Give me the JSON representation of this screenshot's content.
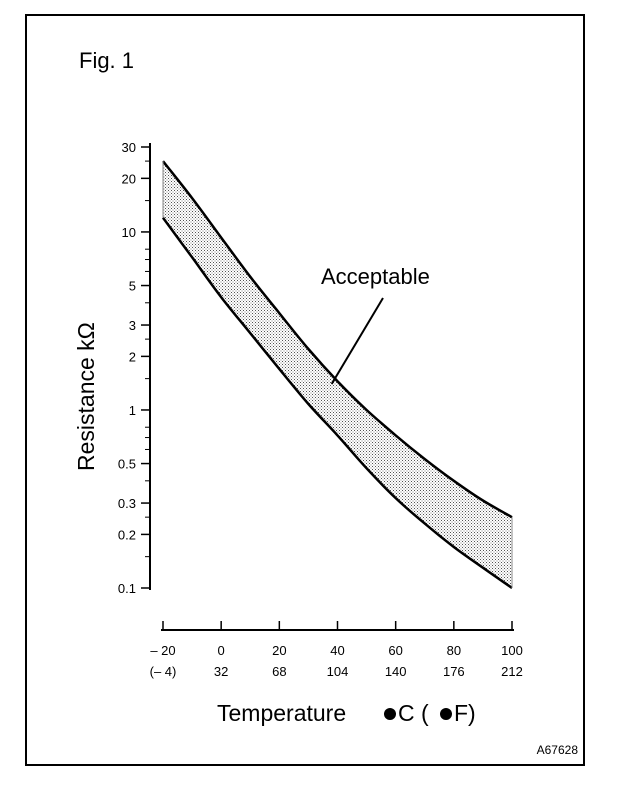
{
  "figure_label": "Fig. 1",
  "figure_code": "A67628",
  "chart_data": {
    "type": "area",
    "title": "",
    "ylabel": "Resistance kΩ",
    "xlabel_text": "Temperature ",
    "xlabel_unit_c": "C (",
    "xlabel_unit_f": "F)",
    "yscale": "log",
    "ylim": [
      0.1,
      30
    ],
    "xlim": [
      -20,
      100
    ],
    "y_ticks": [
      {
        "value": 30,
        "label": "30"
      },
      {
        "value": 20,
        "label": "20"
      },
      {
        "value": 10,
        "label": "10"
      },
      {
        "value": 5,
        "label": "5"
      },
      {
        "value": 3,
        "label": "3"
      },
      {
        "value": 2,
        "label": "2"
      },
      {
        "value": 1,
        "label": "1"
      },
      {
        "value": 0.5,
        "label": "0.5"
      },
      {
        "value": 0.3,
        "label": "0.3"
      },
      {
        "value": 0.2,
        "label": "0.2"
      },
      {
        "value": 0.1,
        "label": "0.1"
      }
    ],
    "y_minor_ticks": [
      25,
      15,
      8,
      7,
      6,
      4,
      2.5,
      1.5,
      0.8,
      0.7,
      0.6,
      0.4,
      0.25,
      0.15
    ],
    "x_ticks": [
      {
        "value": -20,
        "label_c": "– 20",
        "label_f": "(– 4)"
      },
      {
        "value": 0,
        "label_c": "0",
        "label_f": "32"
      },
      {
        "value": 20,
        "label_c": "20",
        "label_f": "68"
      },
      {
        "value": 40,
        "label_c": "40",
        "label_f": "104"
      },
      {
        "value": 60,
        "label_c": "60",
        "label_f": "140"
      },
      {
        "value": 80,
        "label_c": "80",
        "label_f": "176"
      },
      {
        "value": 100,
        "label_c": "100",
        "label_f": "212"
      }
    ],
    "series": [
      {
        "role": "upper",
        "x": [
          -20,
          -10,
          0,
          10,
          20,
          30,
          40,
          50,
          60,
          70,
          80,
          90,
          100
        ],
        "y": [
          25,
          15.5,
          9.3,
          5.6,
          3.5,
          2.2,
          1.45,
          1.0,
          0.72,
          0.53,
          0.4,
          0.31,
          0.25
        ]
      },
      {
        "role": "lower",
        "x": [
          -20,
          -10,
          0,
          10,
          20,
          30,
          40,
          50,
          60,
          70,
          80,
          90,
          100
        ],
        "y": [
          12,
          7.2,
          4.3,
          2.7,
          1.7,
          1.08,
          0.72,
          0.47,
          0.32,
          0.23,
          0.17,
          0.13,
          0.1
        ]
      }
    ],
    "band_fill": "#b8b8b8",
    "annotation": {
      "text": "Acceptable",
      "x": 38,
      "y": 1.4
    },
    "grid": false,
    "legend": "none"
  }
}
